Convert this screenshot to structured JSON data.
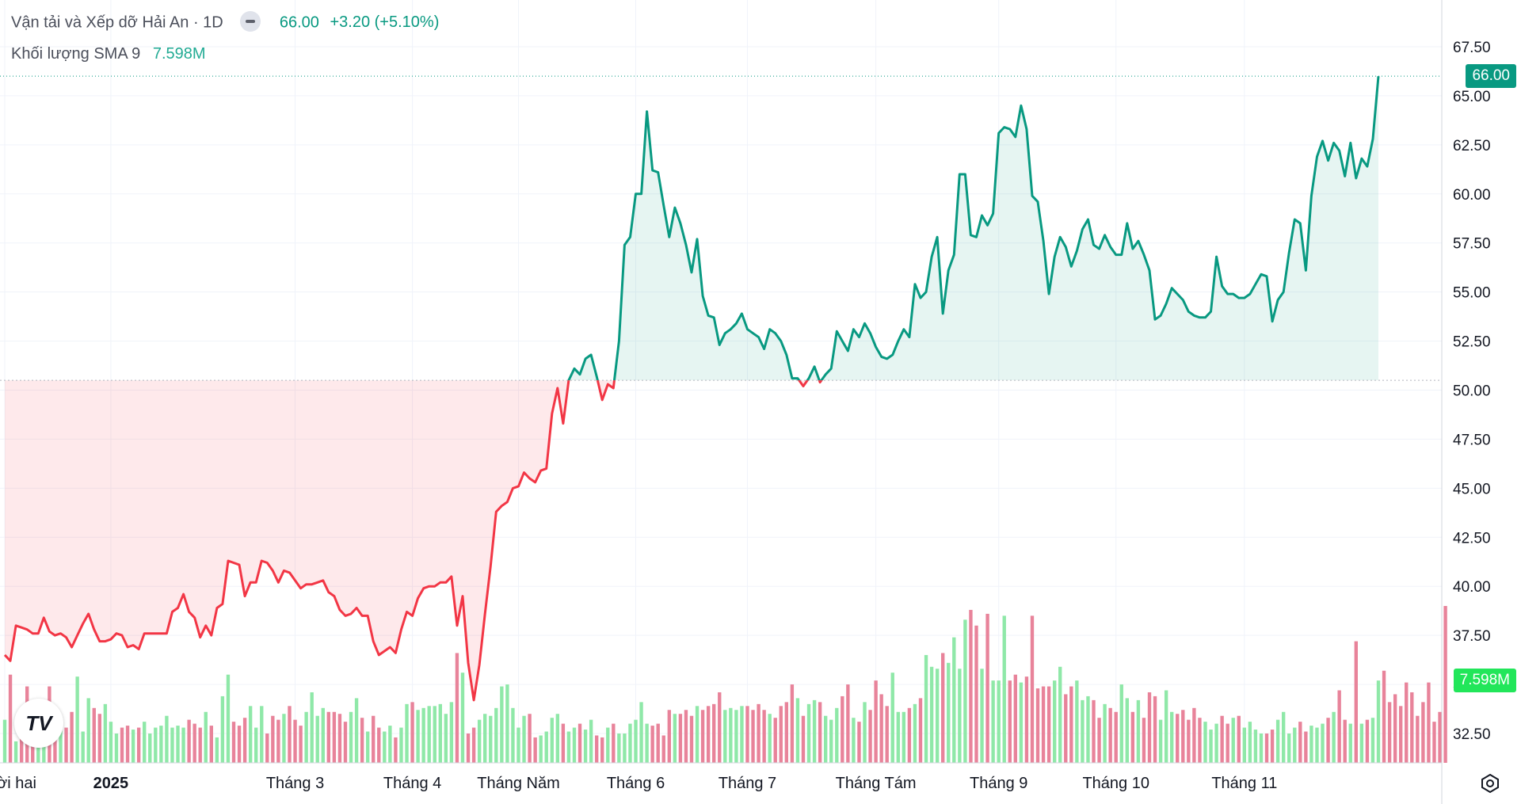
{
  "legend": {
    "symbol": "Vận tải và Xếp dỡ Hải An",
    "interval": "1D",
    "last": "66.00",
    "change": "+3.20 (+5.10%)",
    "volume_label": "Khối lượng SMA 9",
    "volume_value": "7.598M"
  },
  "badges": {
    "price": "66.00",
    "volume": "7.598M"
  },
  "colors": {
    "up": "#089981",
    "down": "#f23645",
    "vol_up": "#8fe8a8",
    "vol_down": "#e8839a",
    "badge_volume": "#22e65a",
    "badge_price": "#089981"
  },
  "chart_data": {
    "type": "line",
    "title": "Vận tải và Xếp dỡ Hải An",
    "baseline": 50.5,
    "ylim": [
      31.8,
      68.5
    ],
    "y_ticks": [
      "67.50",
      "65.00",
      "62.50",
      "60.00",
      "57.50",
      "55.00",
      "52.50",
      "50.00",
      "47.50",
      "45.00",
      "42.50",
      "40.00",
      "37.50",
      "35.00",
      "32.50"
    ],
    "x_labels": [
      {
        "i": 0,
        "label": "Mười hai",
        "bold": false
      },
      {
        "i": 19,
        "label": "2025",
        "bold": true
      },
      {
        "i": 52,
        "label": "Tháng 3",
        "bold": false
      },
      {
        "i": 73,
        "label": "Tháng 4",
        "bold": false
      },
      {
        "i": 92,
        "label": "Tháng Năm",
        "bold": false
      },
      {
        "i": 113,
        "label": "Tháng 6",
        "bold": false
      },
      {
        "i": 133,
        "label": "Tháng 7",
        "bold": false
      },
      {
        "i": 156,
        "label": "Tháng Tám",
        "bold": false
      },
      {
        "i": 178,
        "label": "Tháng 9",
        "bold": false
      },
      {
        "i": 199,
        "label": "Tháng 10",
        "bold": false
      },
      {
        "i": 222,
        "label": "Tháng 11",
        "bold": false
      }
    ],
    "prices": [
      36.5,
      36.2,
      38.0,
      37.9,
      37.8,
      37.6,
      37.6,
      38.4,
      37.7,
      37.5,
      37.6,
      37.4,
      36.9,
      37.5,
      38.1,
      38.6,
      37.8,
      37.2,
      37.2,
      37.3,
      37.6,
      37.5,
      36.9,
      37.0,
      36.8,
      37.6,
      37.6,
      37.6,
      37.6,
      37.6,
      38.7,
      38.9,
      39.6,
      38.7,
      38.4,
      37.4,
      38.0,
      37.5,
      38.9,
      39.1,
      41.3,
      41.2,
      41.1,
      39.5,
      40.2,
      40.2,
      41.3,
      41.2,
      40.8,
      40.2,
      40.8,
      40.7,
      40.3,
      39.9,
      40.1,
      40.1,
      40.2,
      40.3,
      39.7,
      39.5,
      38.8,
      38.5,
      38.6,
      38.9,
      38.5,
      38.5,
      37.2,
      36.5,
      36.7,
      36.9,
      36.6,
      37.8,
      38.7,
      38.5,
      39.4,
      39.9,
      40.0,
      40.0,
      40.2,
      40.2,
      40.5,
      38.0,
      39.5,
      36.1,
      34.2,
      36.0,
      38.6,
      41.0,
      43.8,
      44.1,
      44.3,
      45.0,
      45.1,
      45.8,
      45.5,
      45.3,
      45.9,
      46.0,
      48.8,
      50.1,
      48.3,
      50.5,
      51.1,
      50.8,
      51.6,
      51.8,
      50.7,
      49.5,
      50.3,
      50.1,
      52.5,
      57.4,
      57.8,
      60.0,
      60.0,
      64.2,
      61.2,
      61.1,
      59.4,
      57.8,
      59.3,
      58.5,
      57.4,
      56.0,
      57.7,
      54.8,
      53.8,
      53.7,
      52.3,
      52.9,
      53.1,
      53.4,
      53.9,
      53.1,
      52.9,
      52.7,
      52.1,
      53.1,
      52.9,
      52.5,
      51.8,
      50.6,
      50.6,
      50.2,
      50.6,
      51.2,
      50.4,
      50.8,
      51.1,
      53.0,
      52.5,
      52.0,
      53.1,
      52.7,
      53.4,
      52.9,
      52.2,
      51.7,
      51.6,
      51.8,
      52.5,
      53.1,
      52.7,
      55.4,
      54.7,
      55.0,
      56.8,
      57.8,
      53.9,
      56.1,
      56.9,
      61.0,
      61.0,
      57.9,
      57.8,
      58.9,
      58.4,
      59.0,
      63.1,
      63.4,
      63.3,
      62.9,
      64.5,
      63.3,
      59.9,
      59.6,
      57.6,
      54.9,
      56.8,
      57.8,
      57.3,
      56.3,
      57.1,
      58.2,
      58.7,
      57.4,
      57.2,
      57.9,
      57.3,
      56.9,
      56.9,
      58.5,
      57.2,
      57.6,
      56.9,
      56.1,
      53.6,
      53.8,
      54.4,
      55.2,
      54.9,
      54.6,
      54.0,
      53.8,
      53.7,
      53.7,
      54.0,
      56.8,
      55.3,
      54.9,
      54.9,
      54.7,
      54.7,
      54.9,
      55.4,
      55.9,
      55.8,
      53.5,
      54.6,
      55.0,
      57.0,
      58.7,
      58.5,
      56.1,
      59.9,
      61.9,
      62.7,
      61.7,
      62.6,
      62.2,
      60.9,
      62.6,
      60.8,
      61.8,
      61.4,
      62.8,
      66.0
    ],
    "volume_ticks": [
      33.2,
      35.5,
      32.1,
      33.7,
      34.9,
      32.5,
      33.3,
      32.8,
      34.9,
      33.6,
      33.1,
      32.8,
      33.6,
      35.4,
      32.6,
      34.3,
      33.8,
      33.5,
      34.0,
      33.1,
      32.5,
      32.8,
      32.9,
      32.7,
      32.8,
      33.1,
      32.5,
      32.8,
      32.9,
      33.4,
      32.8,
      32.9,
      32.8,
      33.2,
      33.0,
      32.8,
      33.6,
      32.9,
      32.3,
      34.4,
      35.5,
      33.1,
      32.9,
      33.3,
      33.9,
      32.8,
      33.9,
      32.5,
      33.4,
      33.2,
      33.5,
      33.9,
      33.2,
      32.9,
      33.6,
      34.6,
      33.4,
      33.8,
      33.6,
      33.6,
      33.5,
      33.1,
      33.6,
      34.3,
      33.3,
      32.6,
      33.4,
      32.8,
      32.6,
      32.9,
      32.3,
      32.8,
      34.0,
      34.1,
      33.7,
      33.8,
      33.9,
      33.9,
      34.0,
      33.5,
      34.1,
      36.6,
      35.6,
      32.5,
      32.8,
      33.2,
      33.5,
      33.4,
      33.8,
      34.9,
      35.0,
      33.8,
      32.8,
      33.4,
      33.5,
      32.3,
      32.4,
      32.6,
      33.3,
      33.5,
      33.0,
      32.6,
      32.8,
      33.0,
      32.7,
      33.2,
      32.4,
      32.3,
      32.8,
      33.0,
      32.5,
      32.5,
      33.0,
      33.2,
      34.1,
      33.0,
      32.9,
      33.0,
      32.4,
      33.7,
      33.5,
      33.5,
      33.7,
      33.4,
      33.9,
      33.7,
      33.9,
      34.0,
      34.6,
      33.7,
      33.8,
      33.7,
      33.9,
      33.9,
      33.7,
      34.0,
      33.7,
      33.5,
      33.3,
      33.9,
      34.1,
      35.0,
      34.3,
      33.4,
      34.0,
      34.2,
      34.1,
      33.4,
      33.2,
      33.8,
      34.4,
      35.0,
      33.3,
      33.1,
      34.1,
      33.7,
      35.2,
      34.5,
      33.9,
      35.6,
      33.6,
      33.6,
      33.8,
      34.0,
      34.3,
      36.5,
      35.9,
      35.8,
      36.6,
      36.1,
      37.4,
      35.8,
      38.3,
      38.8,
      38.0,
      35.8,
      38.6,
      35.2,
      35.2,
      38.5,
      35.2,
      35.5,
      35.1,
      35.4,
      38.5,
      34.8,
      34.9,
      34.9,
      35.2,
      35.9,
      34.5,
      34.9,
      35.2,
      34.2,
      34.4,
      34.2,
      33.3,
      34.0,
      33.8,
      33.6,
      35.0,
      34.3,
      33.6,
      34.2,
      33.3,
      34.6,
      34.4,
      33.2,
      34.7,
      33.6,
      33.5,
      33.7,
      33.2,
      33.8,
      33.3,
      33.1,
      32.7,
      33.0,
      33.4,
      33.0,
      33.3,
      33.4,
      32.8,
      33.1,
      32.7,
      32.5,
      32.5,
      32.7,
      33.2,
      33.6,
      32.5,
      32.8,
      33.1,
      32.6,
      32.9,
      32.8,
      33.0,
      33.3,
      33.6,
      34.7,
      33.2,
      33.0,
      37.2,
      33.0,
      33.2,
      33.3,
      35.2,
      35.7,
      34.1,
      34.5,
      33.9,
      35.1,
      34.6,
      33.4,
      34.1,
      35.1,
      33.1,
      33.6,
      39.0
    ]
  }
}
